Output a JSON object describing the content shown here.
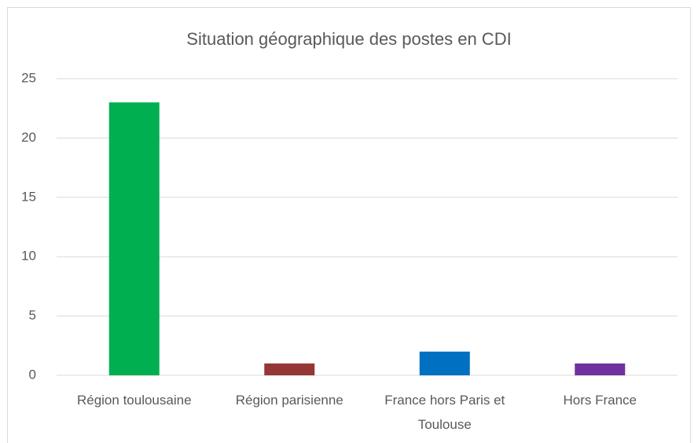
{
  "chart_data": {
    "type": "bar",
    "title": "Situation géographique des postes en CDI",
    "categories": [
      "Région toulousaine",
      "Région parisienne",
      "France hors Paris et Toulouse",
      "Hors France"
    ],
    "values": [
      23,
      1,
      2,
      1
    ],
    "colors": [
      "#00b050",
      "#953735",
      "#0070c0",
      "#7030a0"
    ],
    "ylim": [
      0,
      25
    ],
    "yticks": [
      0,
      5,
      10,
      15,
      20,
      25
    ],
    "grid": true
  }
}
